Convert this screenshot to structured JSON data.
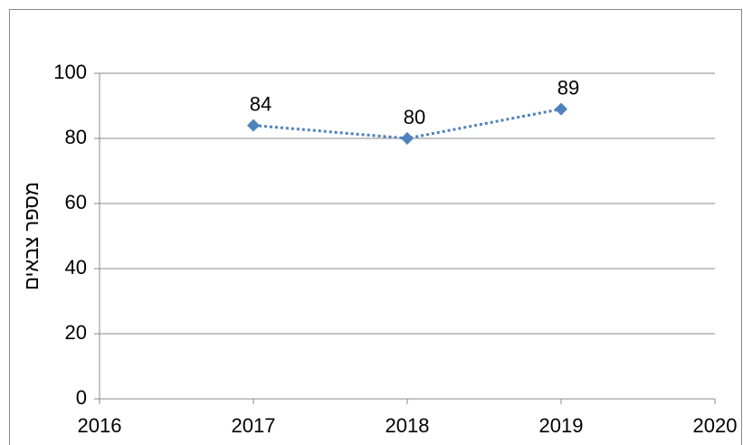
{
  "chart_data": {
    "type": "line",
    "y_label": "מספר צבאים",
    "x": [
      2017,
      2018,
      2019
    ],
    "series": [
      {
        "color": "#4f81bd",
        "values": [
          84,
          80,
          89
        ]
      }
    ],
    "xlim": [
      2016,
      2020
    ],
    "xticks": [
      2016,
      2017,
      2018,
      2019,
      2020
    ],
    "ylim": [
      0,
      100
    ],
    "yticks": [
      0,
      20,
      40,
      60,
      80,
      100
    ],
    "grid": true
  }
}
